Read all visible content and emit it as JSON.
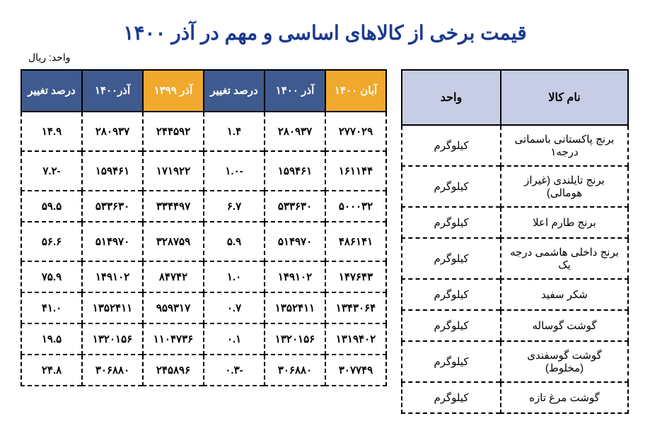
{
  "title": "قیمت برخی از کالاهای اساسی و مهم در آذر ۱۴۰۰",
  "title_color": "#1b3a8f",
  "unit_label": "واحد: ریال",
  "colors": {
    "header_navy": "#3e5a8f",
    "header_orange": "#f0a82d",
    "items_header_bg": "#c6cde4",
    "border": "#000000"
  },
  "items_table": {
    "headers": {
      "name": "نام کالا",
      "unit": "واحد"
    },
    "rows": [
      {
        "name": "برنج پاکستانی باسماتی درجه۱",
        "unit": "کیلوگرم"
      },
      {
        "name": "برنج تایلندی (غیراز هومالی)",
        "unit": "کیلوگرم"
      },
      {
        "name": "برنج طارم اعلا",
        "unit": "کیلوگرم"
      },
      {
        "name": "برنج داخلی هاشمی درجه یک",
        "unit": "کیلوگرم"
      },
      {
        "name": "شکر سفید",
        "unit": "کیلوگرم"
      },
      {
        "name": "گوشت گوساله",
        "unit": "کیلوگرم"
      },
      {
        "name": "گوشت گوسفندی (مخلوط)",
        "unit": "کیلوگرم"
      },
      {
        "name": "گوشت مرغ تازه",
        "unit": "کیلوگرم"
      }
    ]
  },
  "data_table": {
    "headers": [
      {
        "label": "آبان ۱۴۰۰",
        "bg": "#f0a82d"
      },
      {
        "label": "آذر ۱۴۰۰",
        "bg": "#3e5a8f"
      },
      {
        "label": "درصد تغییر",
        "bg": "#3e5a8f"
      },
      {
        "label": "آذر ۱۳۹۹",
        "bg": "#f0a82d"
      },
      {
        "label": "آذر۱۴۰۰",
        "bg": "#3e5a8f"
      },
      {
        "label": "درصد تغییر",
        "bg": "#3e5a8f"
      }
    ],
    "rows": [
      [
        "۲۷۷۰۲۹",
        "۲۸۰۹۳۷",
        "۱.۴",
        "۲۴۴۵۹۲",
        "۲۸۰۹۳۷",
        "۱۴.۹"
      ],
      [
        "۱۶۱۱۴۴",
        "۱۵۹۴۶۱",
        "-۱.۰",
        "۱۷۱۹۲۲",
        "۱۵۹۴۶۱",
        "-۷.۲"
      ],
      [
        "۵۰۰۰۳۲",
        "۵۳۳۶۳۰",
        "۶.۷",
        "۳۳۴۴۹۷",
        "۵۳۳۶۳۰",
        "۵۹.۵"
      ],
      [
        "۴۸۶۱۴۱",
        "۵۱۴۹۷۰",
        "۵.۹",
        "۳۲۸۷۵۹",
        "۵۱۴۹۷۰",
        "۵۶.۶"
      ],
      [
        "۱۴۷۶۴۳",
        "۱۴۹۱۰۲",
        "۱.۰",
        "۸۴۷۴۲",
        "۱۴۹۱۰۲",
        "۷۵.۹"
      ],
      [
        "۱۳۴۳۰۶۴",
        "۱۳۵۲۴۱۱",
        "۰.۷",
        "۹۵۹۳۱۷",
        "۱۳۵۲۴۱۱",
        "۴۱.۰"
      ],
      [
        "۱۳۱۹۴۰۲",
        "۱۳۲۰۱۵۶",
        "۰.۱",
        "۱۱۰۴۷۳۶",
        "۱۳۲۰۱۵۶",
        "۱۹.۵"
      ],
      [
        "۳۰۷۷۴۹",
        "۳۰۶۸۸۰",
        "-۰.۳",
        "۲۴۵۸۹۶",
        "۳۰۶۸۸۰",
        "۲۴.۸"
      ]
    ]
  }
}
